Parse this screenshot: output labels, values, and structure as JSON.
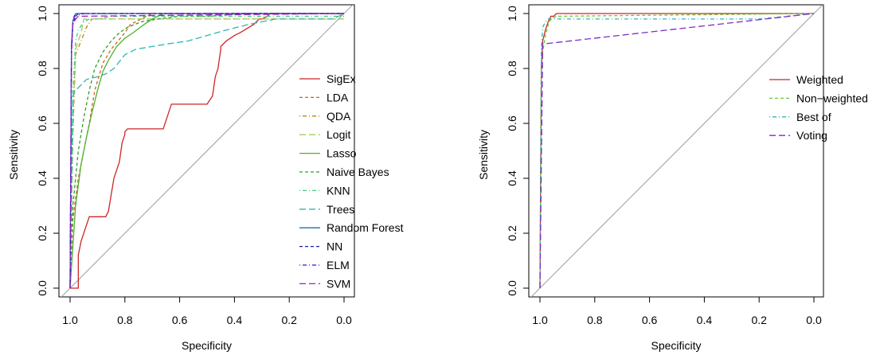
{
  "chart_data": [
    {
      "type": "line",
      "title": "",
      "xlabel": "Specificity",
      "ylabel": "Sensitivity",
      "xlim": [
        1.0,
        0.0
      ],
      "ylim": [
        0.0,
        1.0
      ],
      "x_reversed": true,
      "xticks": [
        "1.0",
        "0.8",
        "0.6",
        "0.4",
        "0.2",
        "0.0"
      ],
      "yticks": [
        "0.0",
        "0.2",
        "0.4",
        "0.6",
        "0.8",
        "1.0"
      ],
      "grid": false,
      "legend": "right",
      "diagonal": true,
      "series": [
        {
          "name": "SigEx",
          "color": "#CD2626",
          "dash": "solid",
          "x": [
            1.0,
            0.99,
            0.97,
            0.97,
            0.96,
            0.93,
            0.87,
            0.86,
            0.84,
            0.82,
            0.81,
            0.8,
            0.8,
            0.79,
            0.79,
            0.76,
            0.66,
            0.63,
            0.5,
            0.48,
            0.47,
            0.46,
            0.45,
            0.45,
            0.43,
            0.4,
            0.38,
            0.33,
            0.31,
            0.3,
            0.28,
            0.27,
            0.0
          ],
          "y": [
            0.0,
            0.0,
            0.0,
            0.12,
            0.17,
            0.26,
            0.26,
            0.28,
            0.4,
            0.46,
            0.53,
            0.56,
            0.57,
            0.58,
            0.58,
            0.58,
            0.58,
            0.67,
            0.67,
            0.7,
            0.77,
            0.8,
            0.87,
            0.88,
            0.9,
            0.92,
            0.93,
            0.96,
            0.98,
            0.98,
            0.99,
            1.0,
            1.0
          ]
        },
        {
          "name": "LDA",
          "color": "#CD661D",
          "dash": "dashed",
          "x": [
            1.0,
            0.99,
            0.97,
            0.95,
            0.93,
            0.91,
            0.88,
            0.85,
            0.8,
            0.78,
            0.74,
            0.7,
            0.0
          ],
          "y": [
            0.0,
            0.25,
            0.4,
            0.5,
            0.6,
            0.72,
            0.82,
            0.87,
            0.93,
            0.96,
            0.98,
            1.0,
            1.0
          ]
        },
        {
          "name": "QDA",
          "color": "#B8860B",
          "dash": "dotdash",
          "x": [
            1.0,
            0.99,
            0.98,
            0.96,
            0.94,
            0.92,
            0.0
          ],
          "y": [
            0.0,
            0.55,
            0.85,
            0.9,
            0.95,
            0.98,
            0.98
          ]
        },
        {
          "name": "Logit",
          "color": "#A2CD5A",
          "dash": "longdash",
          "x": [
            1.0,
            0.99,
            0.98,
            0.96,
            0.95,
            0.0
          ],
          "y": [
            0.0,
            0.6,
            0.87,
            0.93,
            0.98,
            0.98
          ]
        },
        {
          "name": "Lasso",
          "color": "#4DB32B",
          "dash": "solid",
          "x": [
            1.0,
            0.98,
            0.96,
            0.94,
            0.92,
            0.9,
            0.88,
            0.86,
            0.83,
            0.8,
            0.77,
            0.73,
            0.7,
            0.66,
            0.0
          ],
          "y": [
            0.0,
            0.3,
            0.45,
            0.55,
            0.64,
            0.72,
            0.79,
            0.83,
            0.88,
            0.91,
            0.93,
            0.96,
            0.98,
            1.0,
            1.0
          ]
        },
        {
          "name": "Naive Bayes",
          "color": "#2E9F2E",
          "dash": "dashed",
          "x": [
            1.0,
            0.99,
            0.97,
            0.95,
            0.93,
            0.91,
            0.88,
            0.85,
            0.82,
            0.79,
            0.74,
            0.68,
            0.6,
            0.5,
            0.35,
            0.0
          ],
          "y": [
            0.0,
            0.3,
            0.5,
            0.62,
            0.72,
            0.8,
            0.86,
            0.9,
            0.93,
            0.95,
            0.97,
            0.98,
            0.99,
            0.99,
            1.0,
            1.0
          ]
        },
        {
          "name": "KNN",
          "color": "#43CD80",
          "dash": "dotdash",
          "x": [
            1.0,
            0.99,
            0.98,
            0.97,
            0.95,
            0.93,
            0.9,
            0.85,
            0.8,
            0.0
          ],
          "y": [
            0.0,
            0.7,
            0.9,
            0.94,
            0.97,
            0.98,
            0.98,
            0.99,
            0.99,
            0.99
          ]
        },
        {
          "name": "Trees",
          "color": "#2FB5B5",
          "dash": "longdash",
          "x": [
            1.0,
            0.99,
            0.98,
            0.94,
            0.9,
            0.87,
            0.84,
            0.8,
            0.76,
            0.7,
            0.64,
            0.57,
            0.5,
            0.43,
            0.35,
            0.25,
            0.1,
            0.04,
            0.0
          ],
          "y": [
            0.0,
            0.7,
            0.72,
            0.76,
            0.77,
            0.78,
            0.8,
            0.85,
            0.87,
            0.88,
            0.89,
            0.9,
            0.92,
            0.94,
            0.96,
            0.98,
            0.98,
            0.98,
            1.0
          ]
        },
        {
          "name": "Random Forest",
          "color": "#1F6EA8",
          "dash": "solid",
          "x": [
            1.0,
            0.995,
            0.99,
            0.985,
            0.98,
            0.0
          ],
          "y": [
            0.0,
            0.88,
            0.97,
            0.99,
            1.0,
            1.0
          ]
        },
        {
          "name": "NN",
          "color": "#1C1CAF",
          "dash": "dashed",
          "x": [
            1.0,
            0.995,
            0.99,
            0.98,
            0.97,
            0.0
          ],
          "y": [
            0.0,
            0.85,
            0.96,
            0.99,
            1.0,
            1.0
          ]
        },
        {
          "name": "ELM",
          "color": "#4B0FC4",
          "dash": "dotdash",
          "x": [
            1.0,
            0.995,
            0.99,
            0.985,
            0.95,
            0.0
          ],
          "y": [
            0.0,
            0.87,
            0.97,
            0.99,
            1.0,
            1.0
          ]
        },
        {
          "name": "SVM",
          "color": "#A020C0",
          "dash": "longdash",
          "x": [
            1.0,
            0.995,
            0.99,
            0.98,
            0.97,
            0.0
          ],
          "y": [
            0.0,
            0.86,
            0.96,
            0.98,
            0.99,
            1.0
          ]
        }
      ]
    },
    {
      "type": "line",
      "title": "",
      "xlabel": "Specificity",
      "ylabel": "Sensitivity",
      "xlim": [
        1.0,
        0.0
      ],
      "ylim": [
        0.0,
        1.0
      ],
      "x_reversed": true,
      "xticks": [
        "1.0",
        "0.8",
        "0.6",
        "0.4",
        "0.2",
        "0.0"
      ],
      "yticks": [
        "0.0",
        "0.2",
        "0.4",
        "0.6",
        "0.8",
        "1.0"
      ],
      "grid": false,
      "legend": "right",
      "diagonal": true,
      "series": [
        {
          "name": "Weighted",
          "color": "#CD2626",
          "dash": "solid",
          "x": [
            1.0,
            0.995,
            0.99,
            0.98,
            0.97,
            0.96,
            0.95,
            0.94,
            0.0
          ],
          "y": [
            0.0,
            0.8,
            0.9,
            0.94,
            0.97,
            0.99,
            0.99,
            1.0,
            1.0
          ]
        },
        {
          "name": "Non−weighted",
          "color": "#6CC832",
          "dash": "dashed",
          "x": [
            1.0,
            0.995,
            0.99,
            0.98,
            0.97,
            0.96,
            0.94,
            0.0
          ],
          "y": [
            0.0,
            0.78,
            0.86,
            0.92,
            0.96,
            0.98,
            0.99,
            1.0
          ]
        },
        {
          "name": "Best of",
          "color": "#2FB5B5",
          "dash": "dotdash",
          "x": [
            1.0,
            0.995,
            0.99,
            0.98,
            0.97,
            0.95,
            0.9,
            0.5,
            0.2,
            0.0
          ],
          "y": [
            0.0,
            0.87,
            0.95,
            0.97,
            0.98,
            0.98,
            0.98,
            0.98,
            0.98,
            1.0
          ]
        },
        {
          "name": "Voting",
          "color": "#7B2FC8",
          "dash": "longdash",
          "x": [
            1.0,
            0.99,
            0.98,
            0.0
          ],
          "y": [
            0.0,
            0.89,
            0.89,
            1.0
          ]
        }
      ]
    }
  ]
}
